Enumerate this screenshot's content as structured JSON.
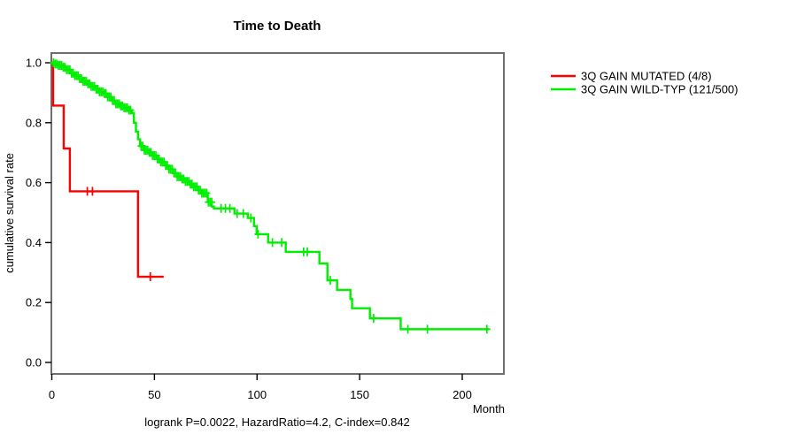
{
  "header": {
    "title": "Time to Death"
  },
  "footer": {
    "annotation": "logrank P=0.0022, HazardRatio=4.2, C-index=0.842"
  },
  "axes": {
    "x_label": "Month",
    "y_label": "cumulative survival rate",
    "x_tick_labels": [
      "0",
      "50",
      "100",
      "150",
      "200"
    ],
    "y_tick_labels": [
      "0.0",
      "0.2",
      "0.4",
      "0.6",
      "0.8",
      "1.0"
    ]
  },
  "legend": {
    "items": [
      {
        "label": "3Q GAIN MUTATED (4/8)",
        "color": "#ff0000"
      },
      {
        "label": "3Q GAIN WILD-TYP (121/500)",
        "color": "#00ee00"
      }
    ]
  },
  "chart_data": {
    "type": "line",
    "subtype": "kaplan-meier-step",
    "title": "Time to Death",
    "xlabel": "Month",
    "ylabel": "cumulative survival rate",
    "xlim": [
      0,
      220
    ],
    "ylim": [
      0,
      1
    ],
    "x_ticks": [
      0,
      50,
      100,
      150,
      200
    ],
    "y_ticks": [
      0.0,
      0.2,
      0.4,
      0.6,
      0.8,
      1.0
    ],
    "grid": false,
    "legend_position": "right-outside",
    "annotation": "logrank P=0.0022, HazardRatio=4.2, C-index=0.842",
    "series": [
      {
        "name": "3Q GAIN MUTATED (4/8)",
        "color": "#ff0000",
        "events": "4/8",
        "steps": [
          [
            0,
            1.0
          ],
          [
            0.6,
            0.857
          ],
          [
            5.8,
            0.714
          ],
          [
            8.8,
            0.571
          ],
          [
            42,
            0.286
          ]
        ],
        "end_month": 54.5,
        "censor_months": [
          17.3,
          19.8,
          48
        ]
      },
      {
        "name": "3Q GAIN WILD-TYP (121/500)",
        "color": "#00ee00",
        "events": "121/500",
        "steps": [
          [
            0,
            1.0
          ],
          [
            1.5,
            0.996
          ],
          [
            3,
            0.991
          ],
          [
            5,
            0.985
          ],
          [
            7,
            0.977
          ],
          [
            9,
            0.965
          ],
          [
            11,
            0.957
          ],
          [
            13,
            0.947
          ],
          [
            15,
            0.938
          ],
          [
            17,
            0.93
          ],
          [
            19,
            0.921
          ],
          [
            21,
            0.912
          ],
          [
            23,
            0.903
          ],
          [
            25,
            0.897
          ],
          [
            27,
            0.886
          ],
          [
            29,
            0.874
          ],
          [
            31,
            0.863
          ],
          [
            33,
            0.856
          ],
          [
            35,
            0.85
          ],
          [
            37,
            0.842
          ],
          [
            39,
            0.832
          ],
          [
            40,
            0.8
          ],
          [
            41,
            0.77
          ],
          [
            42,
            0.745
          ],
          [
            43,
            0.722
          ],
          [
            45,
            0.708
          ],
          [
            47,
            0.701
          ],
          [
            49,
            0.69
          ],
          [
            51,
            0.679
          ],
          [
            53,
            0.669
          ],
          [
            55,
            0.657
          ],
          [
            57,
            0.645
          ],
          [
            59,
            0.632
          ],
          [
            61,
            0.62
          ],
          [
            63,
            0.612
          ],
          [
            65,
            0.604
          ],
          [
            67,
            0.595
          ],
          [
            69,
            0.586
          ],
          [
            71,
            0.575
          ],
          [
            73,
            0.565
          ],
          [
            76,
            0.535
          ],
          [
            78,
            0.52
          ],
          [
            79,
            0.514
          ],
          [
            89,
            0.497
          ],
          [
            95.5,
            0.482
          ],
          [
            98.5,
            0.455
          ],
          [
            99.8,
            0.428
          ],
          [
            105.4,
            0.4
          ],
          [
            114,
            0.369
          ],
          [
            130.4,
            0.33
          ],
          [
            134.3,
            0.274
          ],
          [
            139,
            0.242
          ],
          [
            145.5,
            0.212
          ],
          [
            146.3,
            0.181
          ],
          [
            155,
            0.147
          ],
          [
            170,
            0.111
          ]
        ],
        "end_month": 213,
        "censor_months": [
          0.8,
          1.6,
          2.4,
          3.2,
          4,
          4.8,
          5.6,
          6.4,
          7.2,
          8,
          8.8,
          9.6,
          10.4,
          11.2,
          12,
          12.8,
          13.6,
          14.4,
          15.2,
          16,
          16.8,
          17.6,
          18.4,
          19.2,
          20,
          20.8,
          21.6,
          22.4,
          23.2,
          24,
          24.8,
          25.6,
          26.4,
          27.2,
          28,
          28.8,
          29.6,
          30.4,
          31.2,
          32,
          32.8,
          33.6,
          34.4,
          35.2,
          36,
          36.8,
          37.6,
          38.4,
          43.5,
          44.3,
          45.1,
          45.9,
          46.7,
          47.5,
          48.3,
          49.1,
          49.9,
          50.7,
          51.5,
          52.3,
          53.1,
          53.9,
          54.7,
          55.5,
          56.3,
          57.1,
          57.9,
          58.7,
          59.5,
          60.3,
          61.1,
          61.9,
          62.7,
          63.5,
          64.3,
          65.1,
          65.9,
          66.7,
          67.5,
          68.3,
          69.1,
          69.9,
          70.7,
          71.5,
          72.3,
          73.1,
          73.9,
          74.7,
          75.5,
          76.3,
          77.1,
          77.9,
          82.5,
          84.6,
          86.8,
          90.3,
          93.3,
          97,
          100.5,
          107.5,
          112,
          122.7,
          124.5,
          135.7,
          156.8,
          173.5,
          183,
          212
        ]
      }
    ]
  }
}
